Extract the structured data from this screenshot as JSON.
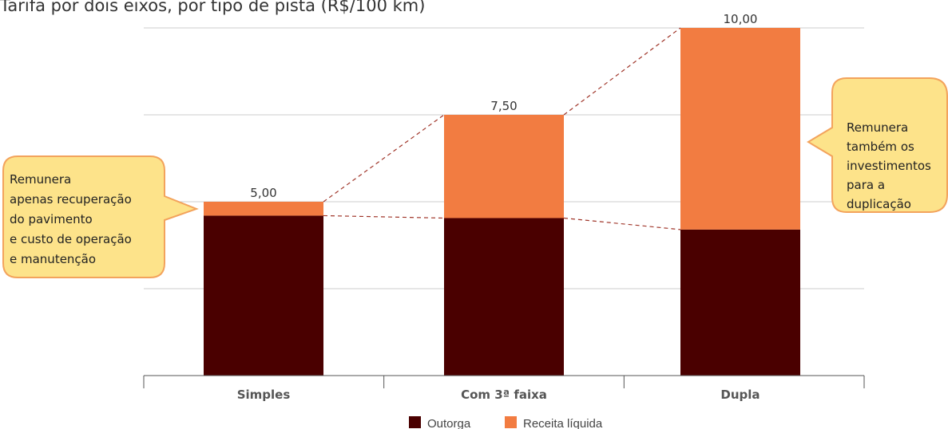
{
  "header": {
    "title": "Tarifa por dois eixos, por tipo de pista (R$/100 km)"
  },
  "chart_data": {
    "type": "bar",
    "stacked": true,
    "categories": [
      "Simples",
      "Com 3ª faixa",
      "Dupla"
    ],
    "series": [
      {
        "name": "Outorga",
        "values": [
          4.6,
          4.53,
          4.2
        ],
        "color": "#4a0000"
      },
      {
        "name": "Receita líquida",
        "values": [
          0.4,
          2.97,
          5.8
        ],
        "color": "#f27c41"
      }
    ],
    "totals": [
      5.0,
      7.5,
      10.0
    ],
    "total_labels": [
      "5,00",
      "7,50",
      "10,00"
    ],
    "ylim": [
      0,
      10
    ],
    "grid": true,
    "legend": "bottom-center"
  },
  "callouts": [
    {
      "lines": [
        "Remunera",
        "apenas recuperação",
        "do pavimento",
        "e custo de operação",
        "e manutenção"
      ]
    },
    {
      "lines": [
        "Remunera",
        "também os",
        "investimentos",
        "para a",
        "duplicação"
      ]
    }
  ],
  "colors": {
    "callout_fill": "#fde38a",
    "callout_stroke": "#f3a35c",
    "connector": "#a0362a",
    "grid": "#cccccc"
  }
}
